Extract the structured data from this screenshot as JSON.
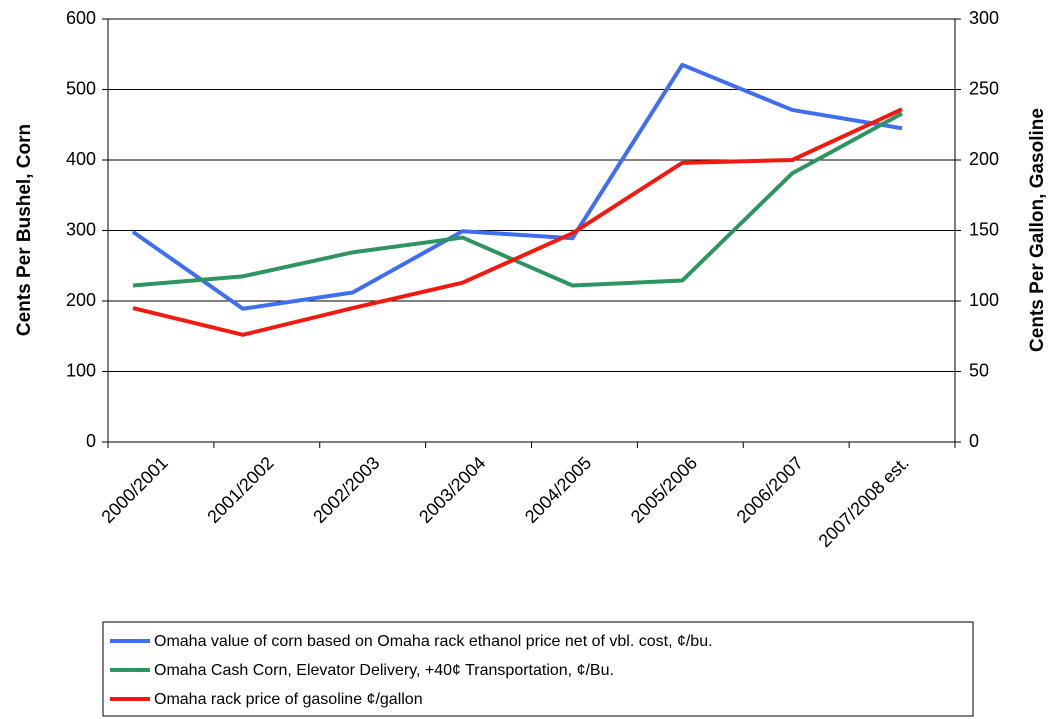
{
  "chart_data": {
    "type": "line",
    "y_label": "Cents Per Bushel, Corn",
    "y2_label": "Cents Per Gallon, Gasoline",
    "categories": [
      "2000/2001",
      "2001/2002",
      "2002/2003",
      "2003/2004",
      "2004/2005",
      "2005/2006",
      "2006/2007",
      "2007/2008 est."
    ],
    "series": [
      {
        "name": "Omaha value of corn based on Omaha rack ethanol price net of vbl. cost, ¢/bu.",
        "color": "#3f6ff0",
        "values": [
          298,
          189,
          212,
          299,
          289,
          535,
          471,
          445
        ]
      },
      {
        "name": "Omaha Cash Corn, Elevator Delivery, +40¢ Transportation, ¢/Bu.",
        "color": "#2e9460",
        "values": [
          222,
          235,
          269,
          290,
          222,
          229,
          381,
          466
        ]
      },
      {
        "name": "Omaha rack price of gasoline ¢/gallon",
        "color": "#f21a10",
        "axis": "y2",
        "values": [
          95,
          76,
          95,
          113,
          148,
          198,
          200,
          236
        ]
      }
    ],
    "ylim": [
      0,
      600
    ],
    "yticks": [
      0,
      100,
      200,
      300,
      400,
      500,
      600
    ],
    "y2lim": [
      0,
      300
    ],
    "y2ticks": [
      0,
      50,
      100,
      150,
      200,
      250,
      300
    ],
    "grid": true,
    "legend": "bottom"
  }
}
